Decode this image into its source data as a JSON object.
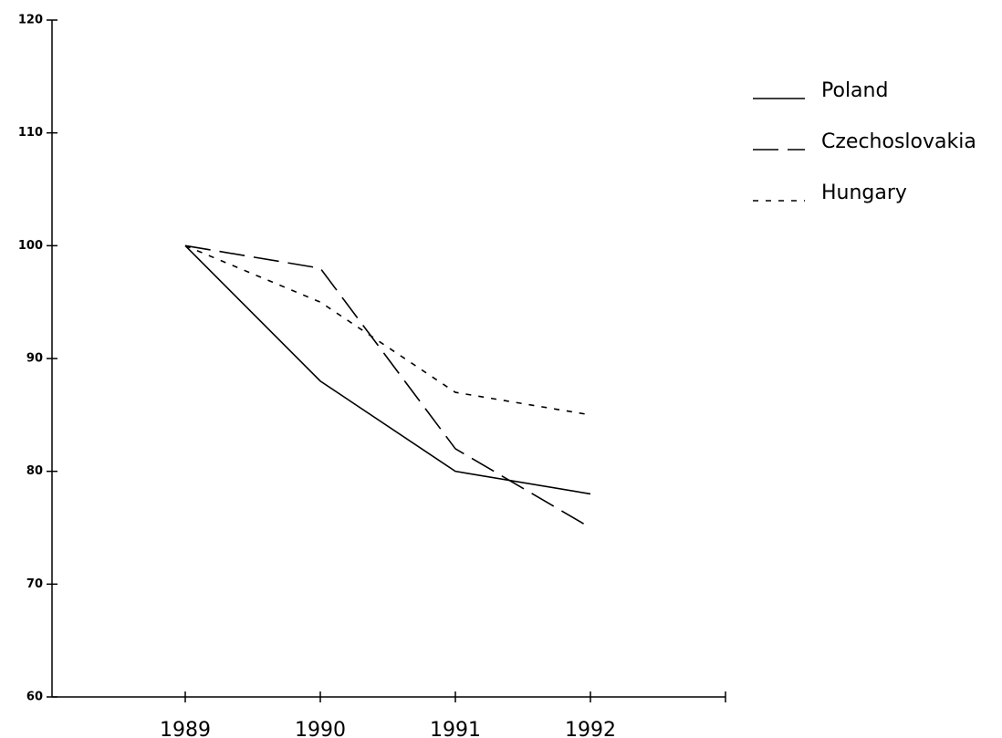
{
  "chart_data": {
    "type": "line",
    "x": [
      1989,
      1990,
      1991,
      1992
    ],
    "series": [
      {
        "name": "Poland",
        "color": "#000000",
        "dash": "solid",
        "values": [
          100,
          88,
          80,
          78
        ]
      },
      {
        "name": "Czechoslovakia",
        "color": "#000000",
        "dash": "dashed",
        "values": [
          100,
          98,
          82,
          75
        ]
      },
      {
        "name": "Hungary",
        "color": "#000000",
        "dash": "dotted",
        "values": [
          100,
          95,
          87,
          85
        ]
      }
    ],
    "xlim": [
      1988,
      1993
    ],
    "xticks": [
      1989,
      1990,
      1991,
      1992
    ],
    "ylim": [
      60,
      120
    ],
    "yticks": [
      60,
      70,
      80,
      90,
      100,
      110,
      120
    ],
    "legend": "top-right",
    "grid": false
  }
}
